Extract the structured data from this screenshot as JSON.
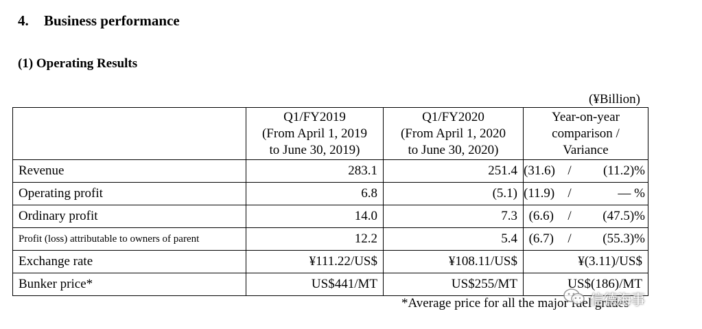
{
  "section": {
    "number": "4.",
    "title": "Business performance"
  },
  "subsection": {
    "title": "(1) Operating Results"
  },
  "unit": "(¥Billion)",
  "table": {
    "headers": [
      "",
      "Q1/FY2019\n(From April 1, 2019\nto June 30, 2019)",
      "Q1/FY2020\n(From April 1, 2020\nto June 30, 2020)",
      "Year-on-year\ncomparison /\nVariance"
    ],
    "rows": [
      {
        "label": "Revenue",
        "fy2019": "283.1",
        "fy2020": "251.4",
        "var_amount": "(31.6)",
        "sep": "/",
        "var_pct": "(11.2)%"
      },
      {
        "label": "Operating profit",
        "fy2019": "6.8",
        "fy2020": "(5.1)",
        "var_amount": "(11.9)",
        "sep": "/",
        "var_pct": "— %"
      },
      {
        "label": "Ordinary profit",
        "fy2019": "14.0",
        "fy2020": "7.3",
        "var_amount": "(6.6)",
        "sep": "/",
        "var_pct": "(47.5)%"
      },
      {
        "label": "Profit (loss) attributable to owners of parent",
        "fy2019": "12.2",
        "fy2020": "5.4",
        "var_amount": "(6.7)",
        "sep": "/",
        "var_pct": "(55.3)%"
      },
      {
        "label": "Exchange rate",
        "fy2019": "¥111.22/US$",
        "fy2020": "¥108.11/US$",
        "variance": "¥(3.11)/US$"
      },
      {
        "label": "Bunker price*",
        "fy2019": "US$441/MT",
        "fy2020": "US$255/MT",
        "variance": "US$(186)/MT"
      }
    ]
  },
  "footnote": "*Average price for all the major fuel grades",
  "watermark": {
    "text": "信德海事",
    "icon": "wechat-icon"
  }
}
